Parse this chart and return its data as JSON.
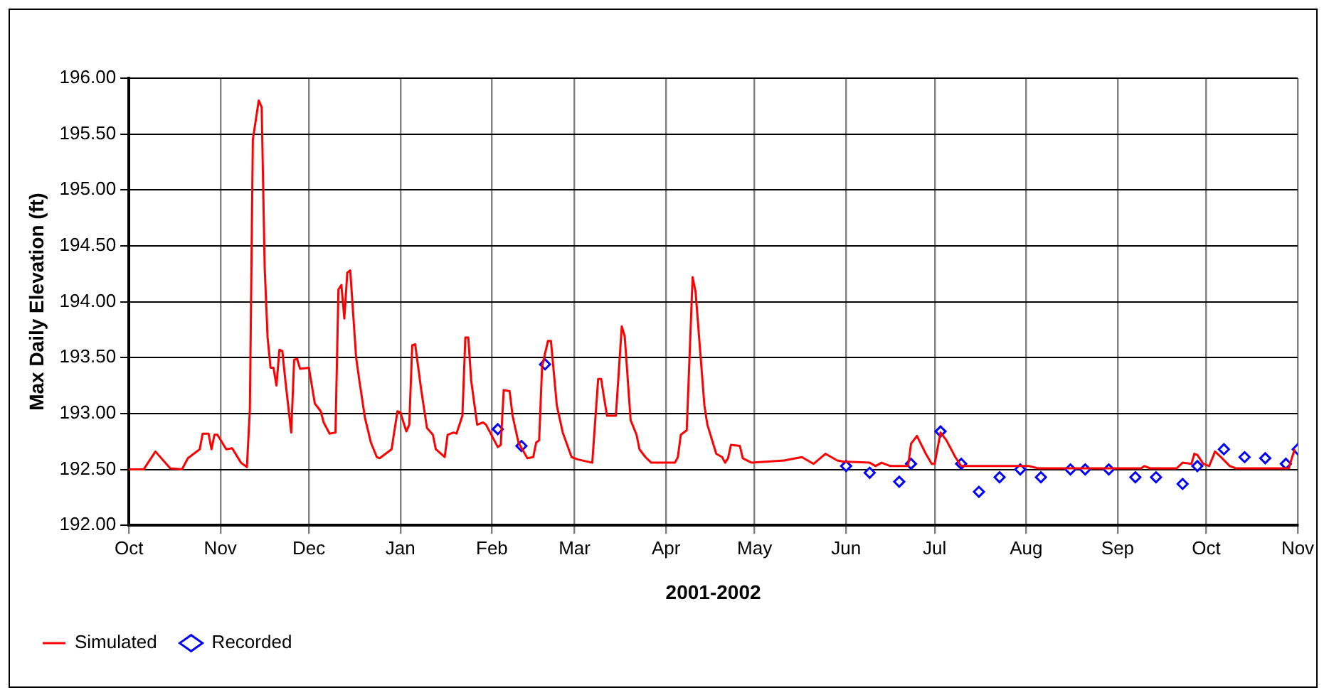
{
  "chart_data": {
    "type": "line",
    "xlabel": "2001-2002",
    "ylabel": "Max Daily Elevation (ft)",
    "xlim": [
      "2001-10-01",
      "2002-11-01"
    ],
    "xticks": [
      {
        "value": "2001-10-01",
        "label": "Oct"
      },
      {
        "value": "2001-11-01",
        "label": "Nov"
      },
      {
        "value": "2001-12-01",
        "label": "Dec"
      },
      {
        "value": "2002-01-01",
        "label": "Jan"
      },
      {
        "value": "2002-02-01",
        "label": "Feb"
      },
      {
        "value": "2002-03-01",
        "label": "Mar"
      },
      {
        "value": "2002-04-01",
        "label": "Apr"
      },
      {
        "value": "2002-05-01",
        "label": "May"
      },
      {
        "value": "2002-06-01",
        "label": "Jun"
      },
      {
        "value": "2002-07-01",
        "label": "Jul"
      },
      {
        "value": "2002-08-01",
        "label": "Aug"
      },
      {
        "value": "2002-09-01",
        "label": "Sep"
      },
      {
        "value": "2002-10-01",
        "label": "Oct"
      },
      {
        "value": "2002-11-01",
        "label": "Nov"
      }
    ],
    "ylim": [
      192,
      196
    ],
    "yticks": [
      {
        "value": 192,
        "label": "192.00"
      },
      {
        "value": 192.5,
        "label": "192.50"
      },
      {
        "value": 193,
        "label": "193.00"
      },
      {
        "value": 193.5,
        "label": "193.50"
      },
      {
        "value": 194,
        "label": "194.00"
      },
      {
        "value": 194.5,
        "label": "194.50"
      },
      {
        "value": 195,
        "label": "195.00"
      },
      {
        "value": 195.5,
        "label": "195.50"
      },
      {
        "value": 196,
        "label": "196.00"
      }
    ],
    "grid": true,
    "legend": "bottom left",
    "series": [
      {
        "name": "Simulated",
        "type": "line",
        "color": "#ff0000",
        "marker": "none",
        "line_style": "solid",
        "x": [
          "2001-10-01",
          "2001-10-06",
          "2001-10-10",
          "2001-10-15",
          "2001-10-19",
          "2001-10-21",
          "2001-10-25",
          "2001-10-26",
          "2001-10-28",
          "2001-10-29",
          "2001-10-30",
          "2001-10-31",
          "2001-11-03",
          "2001-11-05",
          "2001-11-08",
          "2001-11-10",
          "2001-11-11",
          "2001-11-12",
          "2001-11-14",
          "2001-11-15",
          "2001-11-16",
          "2001-11-17",
          "2001-11-18",
          "2001-11-19",
          "2001-11-20",
          "2001-11-21",
          "2001-11-22",
          "2001-11-23",
          "2001-11-25",
          "2001-11-26",
          "2001-11-27",
          "2001-11-28",
          "2001-12-01",
          "2001-12-03",
          "2001-12-05",
          "2001-12-06",
          "2001-12-08",
          "2001-12-10",
          "2001-12-11",
          "2001-12-12",
          "2001-12-13",
          "2001-12-14",
          "2001-12-15",
          "2001-12-17",
          "2001-12-18",
          "2001-12-20",
          "2001-12-22",
          "2001-12-24",
          "2001-12-25",
          "2001-12-27",
          "2001-12-29",
          "2001-12-31",
          "2002-01-01",
          "2002-01-03",
          "2002-01-04",
          "2002-01-05",
          "2002-01-06",
          "2002-01-08",
          "2002-01-10",
          "2002-01-12",
          "2002-01-13",
          "2002-01-16",
          "2002-01-17",
          "2002-01-19",
          "2002-01-20",
          "2002-01-22",
          "2002-01-23",
          "2002-01-24",
          "2002-01-25",
          "2002-01-27",
          "2002-01-29",
          "2002-01-30",
          "2002-02-03",
          "2002-02-04",
          "2002-02-05",
          "2002-02-07",
          "2002-02-08",
          "2002-02-10",
          "2002-02-13",
          "2002-02-15",
          "2002-02-16",
          "2002-02-17",
          "2002-02-18",
          "2002-02-20",
          "2002-02-21",
          "2002-02-23",
          "2002-02-25",
          "2002-02-28",
          "2002-03-02",
          "2002-03-07",
          "2002-03-09",
          "2002-03-10",
          "2002-03-11",
          "2002-03-12",
          "2002-03-15",
          "2002-03-17",
          "2002-03-18",
          "2002-03-20",
          "2002-03-22",
          "2002-03-23",
          "2002-03-25",
          "2002-03-27",
          "2002-04-04",
          "2002-04-05",
          "2002-04-06",
          "2002-04-08",
          "2002-04-10",
          "2002-04-11",
          "2002-04-14",
          "2002-04-15",
          "2002-04-18",
          "2002-04-20",
          "2002-04-21",
          "2002-04-22",
          "2002-04-23",
          "2002-04-26",
          "2002-04-27",
          "2002-04-30",
          "2002-05-11",
          "2002-05-17",
          "2002-05-21",
          "2002-05-25",
          "2002-05-29",
          "2002-05-31",
          "2002-06-09",
          "2002-06-11",
          "2002-06-13",
          "2002-06-16",
          "2002-06-22",
          "2002-06-23",
          "2002-06-25",
          "2002-06-28",
          "2002-06-30",
          "2002-07-01",
          "2002-07-03",
          "2002-07-05",
          "2002-07-08",
          "2002-07-10",
          "2002-08-02",
          "2002-08-05",
          "2002-09-09",
          "2002-09-10",
          "2002-09-12",
          "2002-09-21",
          "2002-09-23",
          "2002-09-26",
          "2002-09-27",
          "2002-09-28",
          "2002-09-30",
          "2002-10-02",
          "2002-10-04",
          "2002-10-06",
          "2002-10-09",
          "2002-10-11",
          "2002-10-29",
          "2002-10-30",
          "2002-10-31"
        ],
        "values": [
          192.5,
          192.5,
          192.66,
          192.51,
          192.5,
          192.6,
          192.68,
          192.82,
          192.82,
          192.68,
          192.81,
          192.81,
          192.68,
          192.69,
          192.56,
          192.52,
          193.04,
          195.45,
          195.8,
          195.74,
          194.32,
          193.68,
          193.41,
          193.41,
          193.25,
          193.57,
          193.56,
          193.3,
          192.83,
          193.48,
          193.49,
          193.4,
          193.41,
          193.09,
          193.02,
          192.92,
          192.82,
          192.83,
          194.11,
          194.15,
          193.85,
          194.26,
          194.28,
          193.5,
          193.31,
          192.96,
          192.74,
          192.61,
          192.6,
          192.64,
          192.68,
          193.02,
          193.01,
          192.84,
          192.9,
          193.61,
          193.62,
          193.22,
          192.87,
          192.81,
          192.68,
          192.61,
          192.81,
          192.83,
          192.82,
          192.98,
          193.68,
          193.68,
          193.29,
          192.9,
          192.92,
          192.9,
          192.7,
          192.72,
          193.21,
          193.2,
          192.98,
          192.74,
          192.6,
          192.61,
          192.74,
          192.76,
          193.42,
          193.65,
          193.65,
          193.07,
          192.83,
          192.61,
          192.59,
          192.56,
          193.31,
          193.31,
          193.14,
          192.98,
          192.98,
          193.78,
          193.69,
          192.94,
          192.81,
          192.68,
          192.61,
          192.56,
          192.56,
          192.61,
          192.81,
          192.85,
          194.22,
          194.09,
          193.07,
          192.9,
          192.64,
          192.61,
          192.56,
          192.6,
          192.72,
          192.71,
          192.6,
          192.56,
          192.58,
          192.61,
          192.55,
          192.64,
          192.58,
          192.57,
          192.56,
          192.53,
          192.56,
          192.53,
          192.53,
          192.73,
          192.8,
          192.64,
          192.55,
          192.55,
          192.83,
          192.76,
          192.61,
          192.53,
          192.53,
          192.51,
          192.51,
          192.53,
          192.51,
          192.51,
          192.56,
          192.55,
          192.64,
          192.63,
          192.55,
          192.53,
          192.66,
          192.61,
          192.53,
          192.51,
          192.51,
          192.6,
          192.68
        ]
      },
      {
        "name": "Recorded",
        "type": "scatter",
        "color": "#0000ff",
        "marker": "diamond",
        "x": [
          "2002-02-03",
          "2002-02-11",
          "2002-02-19",
          "2002-06-01",
          "2002-06-09",
          "2002-06-19",
          "2002-06-23",
          "2002-07-03",
          "2002-07-10",
          "2002-07-16",
          "2002-07-23",
          "2002-07-30",
          "2002-08-06",
          "2002-08-16",
          "2002-08-21",
          "2002-08-29",
          "2002-09-07",
          "2002-09-14",
          "2002-09-23",
          "2002-09-28",
          "2002-10-07",
          "2002-10-14",
          "2002-10-21",
          "2002-10-28",
          "2002-11-01"
        ],
        "values": [
          192.86,
          192.71,
          193.44,
          192.53,
          192.47,
          192.39,
          192.55,
          192.84,
          192.55,
          192.3,
          192.43,
          192.5,
          192.43,
          192.5,
          192.5,
          192.5,
          192.43,
          192.43,
          192.37,
          192.53,
          192.68,
          192.61,
          192.6,
          192.55,
          192.68
        ]
      }
    ]
  }
}
